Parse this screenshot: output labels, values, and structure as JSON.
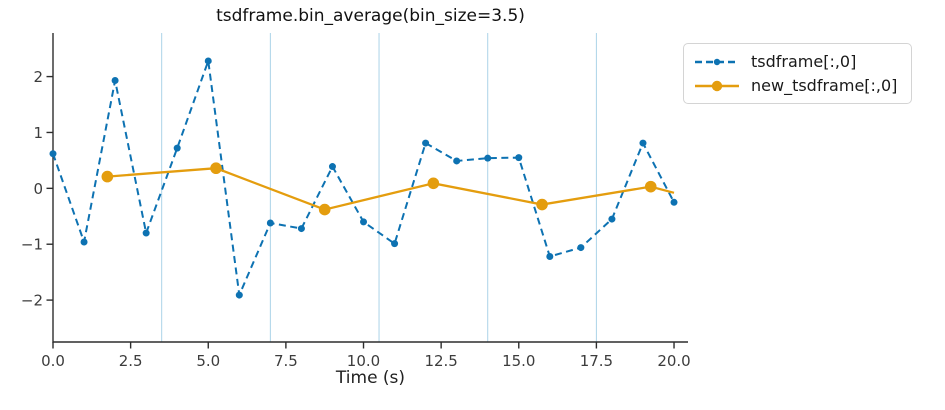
{
  "chart_data": {
    "type": "line",
    "title": "tsdframe.bin_average(bin_size=3.5)",
    "xlabel": "Time (s)",
    "ylabel": "",
    "xlim": [
      0,
      20.45
    ],
    "ylim": [
      -2.75,
      2.78
    ],
    "grid": "off",
    "x_ticks": {
      "values": [
        0.0,
        2.5,
        5.0,
        7.5,
        10.0,
        12.5,
        15.0,
        17.5,
        20.0
      ],
      "labels": [
        "0.0",
        "2.5",
        "5.0",
        "7.5",
        "10.0",
        "12.5",
        "15.0",
        "17.5",
        "20.0"
      ]
    },
    "y_ticks": {
      "values": [
        2,
        1,
        0,
        -1,
        -2
      ],
      "labels": [
        "2",
        "1",
        "0",
        "−1",
        "−2"
      ]
    },
    "bin_boundaries": [
      3.5,
      7.0,
      10.5,
      14.0,
      17.5
    ],
    "bin_line_color": "#abd3e8",
    "axis_color": "#2d2d2d",
    "tick_label_color": "#3c3c3c",
    "series": [
      {
        "name": "tsdframe[:,0]",
        "color": "#0d72b2",
        "line_style": "dashed",
        "marker": "dot",
        "marker_size": 3.5,
        "x": [
          0,
          1,
          2,
          3,
          4,
          5,
          6,
          7,
          8,
          9,
          10,
          11,
          12,
          13,
          14,
          15,
          16,
          17,
          18,
          19,
          20
        ],
        "y": [
          0.62,
          -0.96,
          1.93,
          -0.8,
          0.72,
          2.28,
          -1.91,
          -0.62,
          -0.72,
          0.39,
          -0.6,
          -0.99,
          0.81,
          0.49,
          0.54,
          0.55,
          -1.22,
          -1.06,
          -0.55,
          0.81,
          -0.25
        ]
      },
      {
        "name": "new_tsdframe[:,0]",
        "color": "#e49d0e",
        "line_style": "solid",
        "marker": "circle",
        "marker_size": 5.8,
        "x": [
          1.75,
          5.25,
          8.75,
          12.25,
          15.75,
          19.25
        ],
        "y": [
          0.21,
          0.36,
          -0.38,
          0.09,
          -0.29,
          0.03
        ],
        "line_tail": {
          "x": 20.0,
          "y": -0.08
        }
      }
    ],
    "legend": {
      "position": "upper-right-outside",
      "entries": [
        "tsdframe[:,0]",
        "new_tsdframe[:,0]"
      ]
    }
  }
}
